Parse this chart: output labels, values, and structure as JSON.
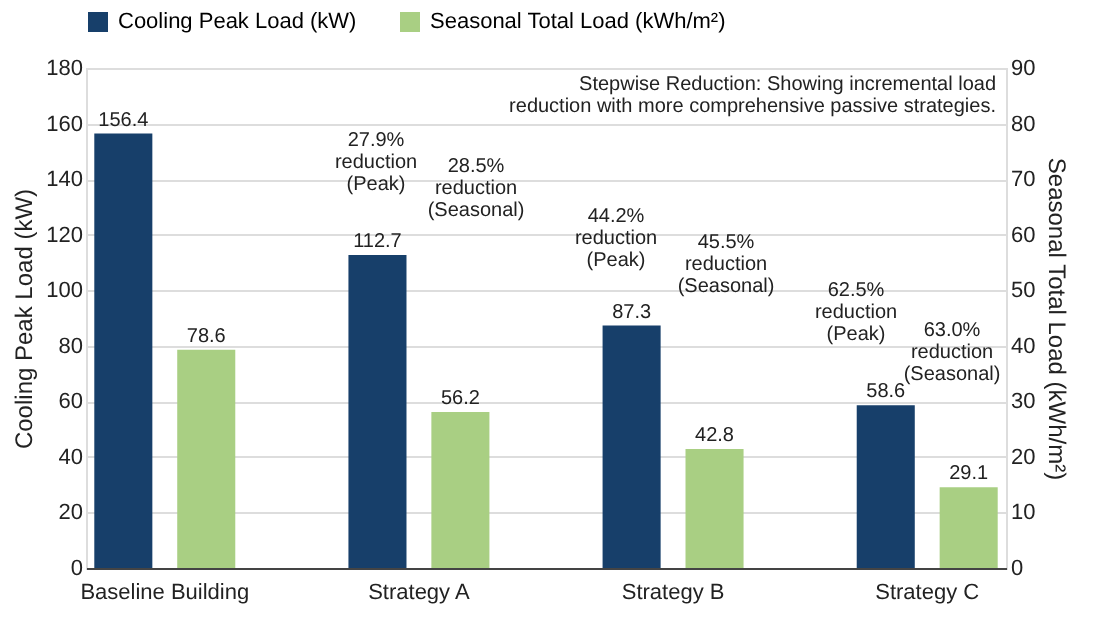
{
  "chart_data": {
    "type": "bar",
    "categories": [
      "Baseline Building",
      "Strategy A",
      "Strategy B",
      "Strategy C"
    ],
    "series": [
      {
        "name": "Cooling Peak Load (kW)",
        "color": "#173f6a",
        "values": [
          156.4,
          112.7,
          87.3,
          58.6
        ]
      },
      {
        "name": "Seasonal Total Load (kWh/m²)",
        "color": "#a9cf83",
        "values": [
          78.6,
          56.2,
          42.8,
          29.1
        ]
      }
    ],
    "ylabel": "Cooling Peak Load (kW)",
    "y2label": "Seasonal Total Load (kWh/m²)",
    "ylim": [
      0,
      180
    ],
    "yticks": [
      0,
      20,
      40,
      60,
      80,
      100,
      120,
      140,
      160,
      180
    ],
    "y2lim": [
      0,
      90
    ],
    "y2ticks": [
      0,
      10,
      20,
      30,
      40,
      50,
      60,
      70,
      80,
      90
    ],
    "grid": "y",
    "legend": "top",
    "data_labels": true,
    "annotations": [
      "Stepwise Reduction: Showing incremental load\nreduction with more comprehensive passive strategies.",
      "27.9%\nreduction\n(Peak)",
      "28.5%\nreduction\n(Seasonal)",
      "44.2%\nreduction\n(Peak)",
      "45.5%\nreduction\n(Seasonal)",
      "62.5%\nreduction\n(Peak)",
      "63.0%\nreduction\n(Seasonal)"
    ]
  }
}
